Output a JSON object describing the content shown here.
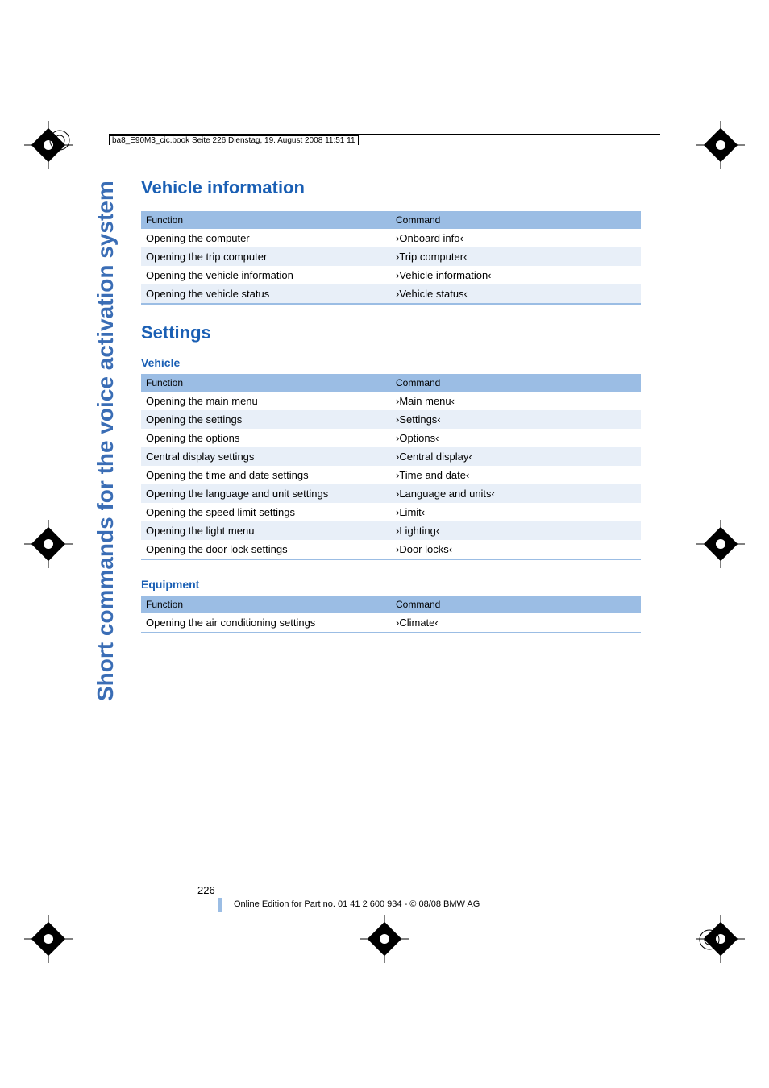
{
  "header_text": "ba8_E90M3_cic.book  Seite 226  Dienstag, 19. August 2008  11:51 11",
  "sidebar_label": "Short commands for the voice activation system",
  "section1": {
    "title": "Vehicle information",
    "headers": {
      "col1": "Function",
      "col2": "Command"
    },
    "rows": [
      {
        "fn": "Opening the computer",
        "cmd": "›Onboard info‹"
      },
      {
        "fn": "Opening the trip computer",
        "cmd": "›Trip computer‹"
      },
      {
        "fn": "Opening the vehicle information",
        "cmd": "›Vehicle information‹"
      },
      {
        "fn": "Opening the vehicle status",
        "cmd": "›Vehicle status‹"
      }
    ]
  },
  "section2": {
    "title": "Settings",
    "sub1": {
      "title": "Vehicle",
      "headers": {
        "col1": "Function",
        "col2": "Command"
      },
      "rows": [
        {
          "fn": "Opening the main menu",
          "cmd": "›Main menu‹"
        },
        {
          "fn": "Opening the settings",
          "cmd": "›Settings‹"
        },
        {
          "fn": "Opening the options",
          "cmd": "›Options‹"
        },
        {
          "fn": "Central display settings",
          "cmd": "›Central display‹"
        },
        {
          "fn": "Opening the time and date settings",
          "cmd": "›Time and date‹"
        },
        {
          "fn": "Opening the language and unit settings",
          "cmd": "›Language and units‹"
        },
        {
          "fn": "Opening the speed limit settings",
          "cmd": "›Limit‹"
        },
        {
          "fn": "Opening the light menu",
          "cmd": "›Lighting‹"
        },
        {
          "fn": "Opening the door lock settings",
          "cmd": "›Door locks‹"
        }
      ]
    },
    "sub2": {
      "title": "Equipment",
      "headers": {
        "col1": "Function",
        "col2": "Command"
      },
      "rows": [
        {
          "fn": "Opening the air conditioning settings",
          "cmd": "›Climate‹"
        }
      ]
    }
  },
  "page_number": "226",
  "footer": "Online Edition for Part no. 01 41 2 600 934 - © 08/08 BMW AG",
  "colors": {
    "heading": "#1a5fb4",
    "table_header_bg": "#9bbde4",
    "row_alt_bg": "#e8eff8",
    "sidebar": "#3a6db5"
  }
}
